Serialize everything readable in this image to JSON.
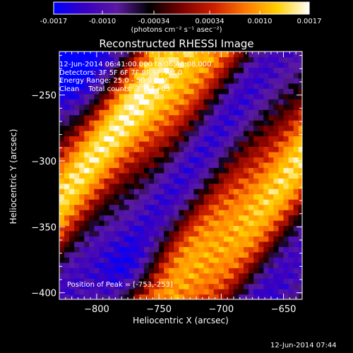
{
  "colorbar": {
    "ticks": [
      "-0.0017",
      "-0.0010",
      "-0.00034",
      "0.00034",
      "0.0010",
      "0.0017"
    ],
    "unit_label": "(photons cm⁻² s⁻¹ asec⁻²)"
  },
  "overlay": {
    "time_range": "12-Jun-2014 06:41:00.000 to 06:43:08.000",
    "detectors": "Detectors: 3F 5F 6F 7F 8F 9F, Att 0",
    "energy": "Energy Range: 25.0 - 50.0 keV",
    "method": "Clean    Total counts: 3.76E+03",
    "peak": "Position of Peak = [-753,-253]"
  },
  "timestamp": "12-Jun-2014 07:44",
  "chart_data": {
    "type": "heatmap",
    "title": "Reconstructed RHESSI Image",
    "xlabel": "Heliocentric X (arcsec)",
    "ylabel": "Heliocentric Y (arcsec)",
    "xlim": [
      -830,
      -635
    ],
    "ylim": [
      -405,
      -217
    ],
    "x_ticks": [
      -800,
      -750,
      -700,
      -650
    ],
    "y_ticks": [
      -250,
      -300,
      -350,
      -400
    ],
    "x_tick_labels": [
      "−800",
      "−750",
      "−700",
      "−650"
    ],
    "y_tick_labels": [
      "−250",
      "−300",
      "−350",
      "−400"
    ],
    "value_range": [
      -0.0017,
      0.0017
    ],
    "pixel_size_arcsec": 4,
    "peak_position": [
      -753,
      -253
    ],
    "colormap": [
      "#0000ff",
      "#3a00c0",
      "#5a1aa0",
      "#000000",
      "#7a0000",
      "#cc1e00",
      "#ff7800",
      "#ffd000",
      "#ffffff"
    ],
    "pattern": "diagonal stripes running from lower-left to upper-right, with bright yellow/white bands at Y≈-260 near X≈-760 and along the lower right"
  }
}
